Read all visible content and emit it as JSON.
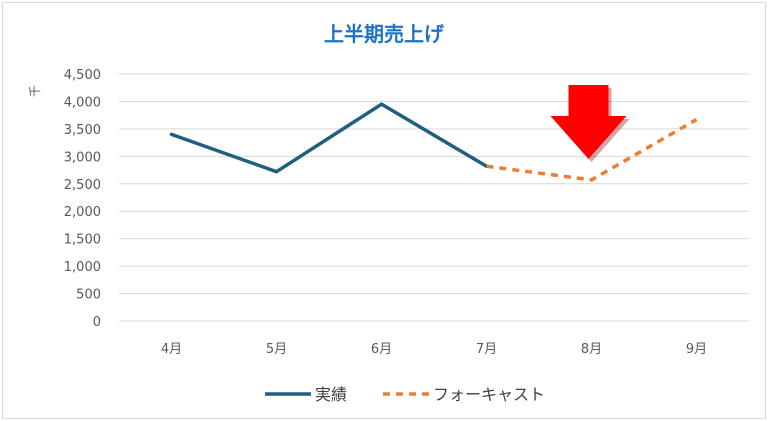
{
  "chart_data": {
    "type": "line",
    "title": "上半期売上げ",
    "ylabel": "千",
    "xlabel": "",
    "categories": [
      "4月",
      "5月",
      "6月",
      "7月",
      "8月",
      "9月"
    ],
    "ylim": [
      0,
      4500
    ],
    "yticks": [
      "0",
      "500",
      "1,000",
      "1,500",
      "2,000",
      "2,500",
      "3,000",
      "3,500",
      "4,000",
      "4,500"
    ],
    "ytick_values": [
      0,
      500,
      1000,
      1500,
      2000,
      2500,
      3000,
      3500,
      4000,
      4500
    ],
    "grid": true,
    "legend_position": "bottom",
    "series": [
      {
        "name": "実績",
        "values": [
          3400,
          2720,
          3950,
          2820,
          null,
          null
        ],
        "color": "#1f5f80",
        "dash": "solid"
      },
      {
        "name": "フォーキャスト",
        "values": [
          null,
          null,
          null,
          2820,
          2570,
          3670
        ],
        "color": "#ed7d31",
        "dash": "dashed"
      }
    ],
    "annotation": {
      "type": "arrow-down-icon",
      "category": "8月",
      "color": "#ff0000"
    }
  }
}
